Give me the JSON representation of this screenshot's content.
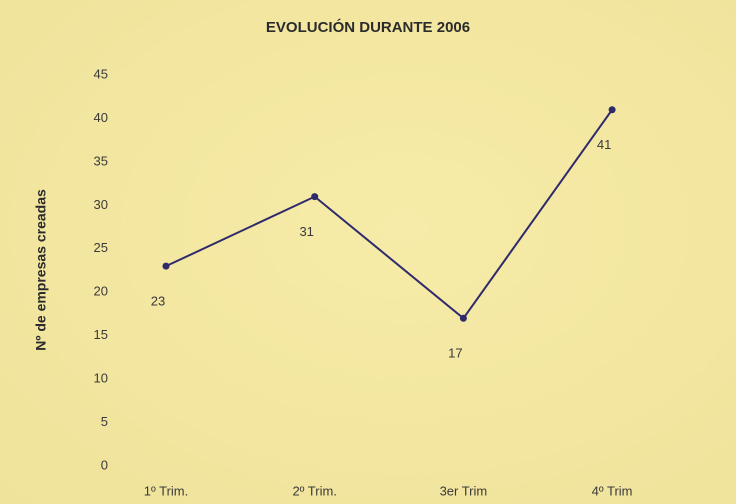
{
  "chart_data": {
    "type": "line",
    "title": "EVOLUCIÓN DURANTE 2006",
    "y_label": "Nº de empresas creadas",
    "categories": [
      "1º Trim.",
      "2º Trim.",
      "3er Trim",
      "4º Trim"
    ],
    "values": [
      23,
      31,
      17,
      41
    ],
    "color": "#2f2b6b",
    "ylim": [
      0,
      45
    ],
    "yticks": [
      0,
      5,
      10,
      15,
      20,
      25,
      30,
      35,
      40,
      45
    ],
    "grid": false
  }
}
